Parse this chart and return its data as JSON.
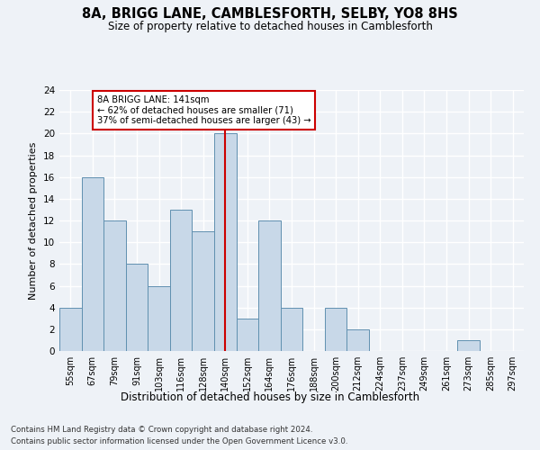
{
  "title": "8A, BRIGG LANE, CAMBLESFORTH, SELBY, YO8 8HS",
  "subtitle": "Size of property relative to detached houses in Camblesforth",
  "xlabel": "Distribution of detached houses by size in Camblesforth",
  "ylabel": "Number of detached properties",
  "footer1": "Contains HM Land Registry data © Crown copyright and database right 2024.",
  "footer2": "Contains public sector information licensed under the Open Government Licence v3.0.",
  "annotation_title": "8A BRIGG LANE: 141sqm",
  "annotation_line1": "← 62% of detached houses are smaller (71)",
  "annotation_line2": "37% of semi-detached houses are larger (43) →",
  "bar_color": "#c8d8e8",
  "bar_edge_color": "#6090b0",
  "highlight_line_color": "#cc0000",
  "annotation_box_color": "#ffffff",
  "annotation_border_color": "#cc0000",
  "background_color": "#eef2f7",
  "grid_color": "#ffffff",
  "categories": [
    "55sqm",
    "67sqm",
    "79sqm",
    "91sqm",
    "103sqm",
    "116sqm",
    "128sqm",
    "140sqm",
    "152sqm",
    "164sqm",
    "176sqm",
    "188sqm",
    "200sqm",
    "212sqm",
    "224sqm",
    "237sqm",
    "249sqm",
    "261sqm",
    "273sqm",
    "285sqm",
    "297sqm"
  ],
  "values": [
    4,
    16,
    12,
    8,
    6,
    13,
    11,
    20,
    3,
    12,
    4,
    0,
    4,
    2,
    0,
    0,
    0,
    0,
    1,
    0,
    0
  ],
  "highlight_index": 7,
  "ylim": [
    0,
    24
  ],
  "yticks": [
    0,
    2,
    4,
    6,
    8,
    10,
    12,
    14,
    16,
    18,
    20,
    22,
    24
  ]
}
